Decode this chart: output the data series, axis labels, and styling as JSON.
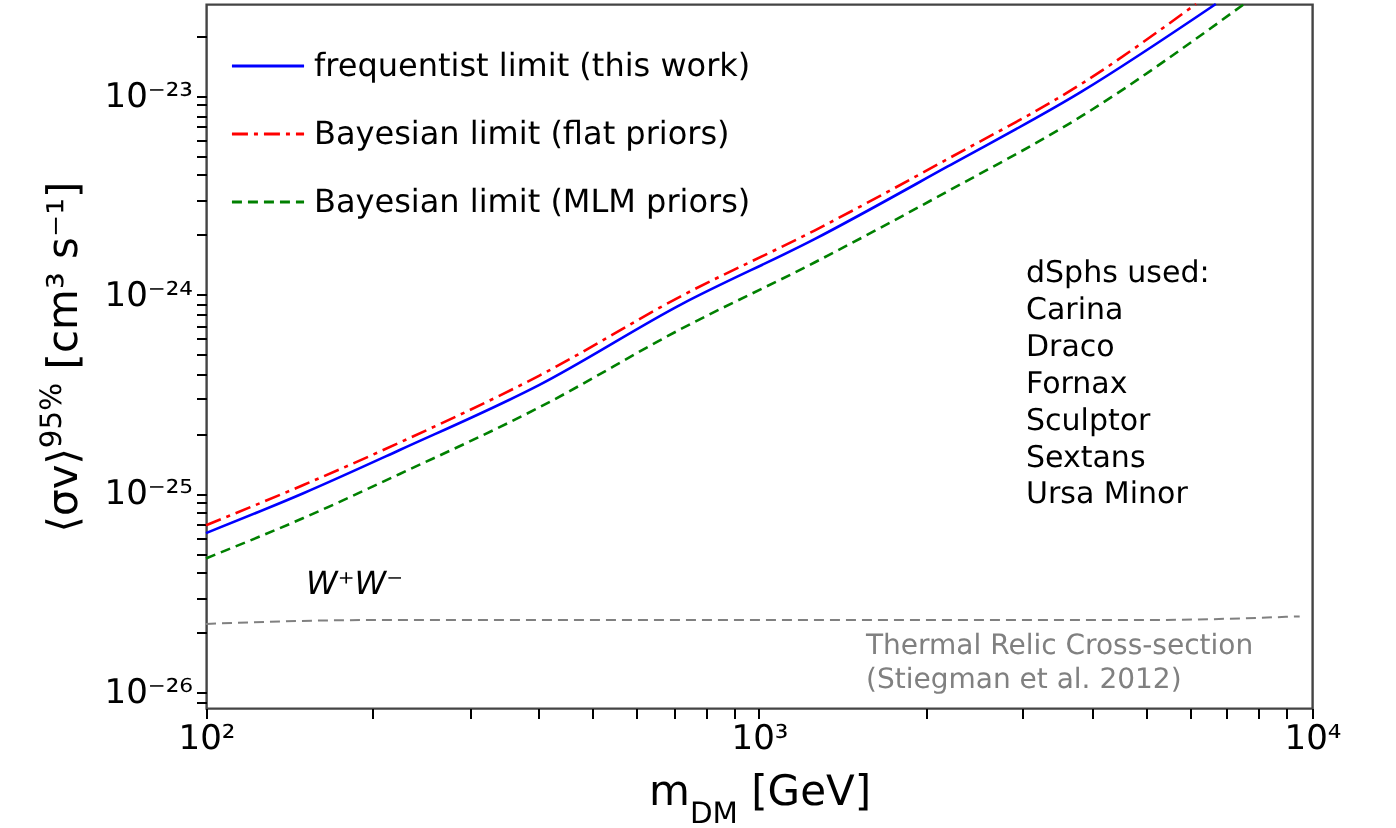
{
  "chart_data": {
    "type": "line",
    "xlabel": "m$_{DM}$ [GeV]",
    "ylabel": "⟨σv⟩$^{95%}$ [cm³ s⁻¹]",
    "log": "xy",
    "grid": false,
    "legend": "top left",
    "xlim": [
      100,
      10000
    ],
    "ylim": [
      8.3e-27,
      2.9e-23
    ],
    "xticks": [
      {
        "value": 100,
        "label": "10²"
      },
      {
        "value": 200,
        "label": null
      },
      {
        "value": 300,
        "label": null
      },
      {
        "value": 400,
        "label": null
      },
      {
        "value": 500,
        "label": null
      },
      {
        "value": 600,
        "label": null
      },
      {
        "value": 700,
        "label": null
      },
      {
        "value": 800,
        "label": null
      },
      {
        "value": 900,
        "label": null
      },
      {
        "value": 1000,
        "label": "10³"
      },
      {
        "value": 2000,
        "label": null
      },
      {
        "value": 3000,
        "label": null
      },
      {
        "value": 4000,
        "label": null
      },
      {
        "value": 5000,
        "label": null
      },
      {
        "value": 6000,
        "label": null
      },
      {
        "value": 7000,
        "label": null
      },
      {
        "value": 8000,
        "label": null
      },
      {
        "value": 9000,
        "label": null
      },
      {
        "value": 10000,
        "label": "10⁴"
      }
    ],
    "yticks": [
      {
        "value": 9e-27,
        "label": null
      },
      {
        "value": 1e-26,
        "label": "10⁻²⁶"
      },
      {
        "value": 2e-26,
        "label": null
      },
      {
        "value": 3e-26,
        "label": null
      },
      {
        "value": 4e-26,
        "label": null
      },
      {
        "value": 5e-26,
        "label": null
      },
      {
        "value": 6e-26,
        "label": null
      },
      {
        "value": 7e-26,
        "label": null
      },
      {
        "value": 8e-26,
        "label": null
      },
      {
        "value": 9e-26,
        "label": null
      },
      {
        "value": 1e-25,
        "label": "10⁻²⁵"
      },
      {
        "value": 2e-25,
        "label": null
      },
      {
        "value": 3e-25,
        "label": null
      },
      {
        "value": 4e-25,
        "label": null
      },
      {
        "value": 5e-25,
        "label": null
      },
      {
        "value": 6e-25,
        "label": null
      },
      {
        "value": 7e-25,
        "label": null
      },
      {
        "value": 8e-25,
        "label": null
      },
      {
        "value": 9e-25,
        "label": null
      },
      {
        "value": 1e-24,
        "label": "10⁻²⁴"
      },
      {
        "value": 2e-24,
        "label": null
      },
      {
        "value": 3e-24,
        "label": null
      },
      {
        "value": 4e-24,
        "label": null
      },
      {
        "value": 5e-24,
        "label": null
      },
      {
        "value": 6e-24,
        "label": null
      },
      {
        "value": 7e-24,
        "label": null
      },
      {
        "value": 8e-24,
        "label": null
      },
      {
        "value": 9e-24,
        "label": null
      },
      {
        "value": 1e-23,
        "label": "10⁻²³"
      },
      {
        "value": 2e-23,
        "label": null
      }
    ],
    "series": [
      {
        "name": "frequentist limit (this work)",
        "type": "line",
        "color": "#0000ff",
        "line_style": "solid",
        "x": [
          100,
          150,
          224,
          400,
          722,
          1260,
          2190,
          3830,
          6700
        ],
        "values": [
          6.3e-26,
          1e-25,
          1.65e-25,
          3.5e-25,
          8.9e-25,
          1.9e-24,
          4.4e-24,
          1.05e-23,
          2.9e-23
        ]
      },
      {
        "name": "Bayesian limit (flat priors)",
        "type": "line",
        "color": "#ff0000",
        "line_style": "dashdot",
        "x": [
          100,
          150,
          224,
          400,
          722,
          1260,
          2190,
          3830,
          6170
        ],
        "values": [
          6.9e-26,
          1.1e-25,
          1.8e-25,
          3.9e-25,
          9.8e-25,
          2.1e-24,
          4.8e-24,
          1.15e-23,
          2.9e-23
        ]
      },
      {
        "name": "Bayesian limit (MLM priors)",
        "type": "line",
        "color": "#008000",
        "line_style": "dashed",
        "x": [
          100,
          150,
          224,
          400,
          722,
          1260,
          2190,
          3830,
          7540
        ],
        "values": [
          4.7e-26,
          7.5e-26,
          1.25e-25,
          2.7e-25,
          6.7e-25,
          1.45e-24,
          3.3e-24,
          7.9e-24,
          2.9e-23
        ]
      },
      {
        "type": "line",
        "color": "#808080",
        "line_style": "dashed",
        "x": [
          100,
          200,
          1000,
          5000,
          9500
        ],
        "values": [
          2.2e-26,
          2.3e-26,
          2.3e-26,
          2.3e-26,
          2.4e-26
        ]
      }
    ],
    "annotations": [
      "W⁺W⁻",
      "dSphs used:\nCarina\nDraco\nFornax\nSculptor\nSextans\nUrsa Minor",
      "Thermal Relic Cross-section\n (Stiegman et al. 2012)"
    ]
  }
}
